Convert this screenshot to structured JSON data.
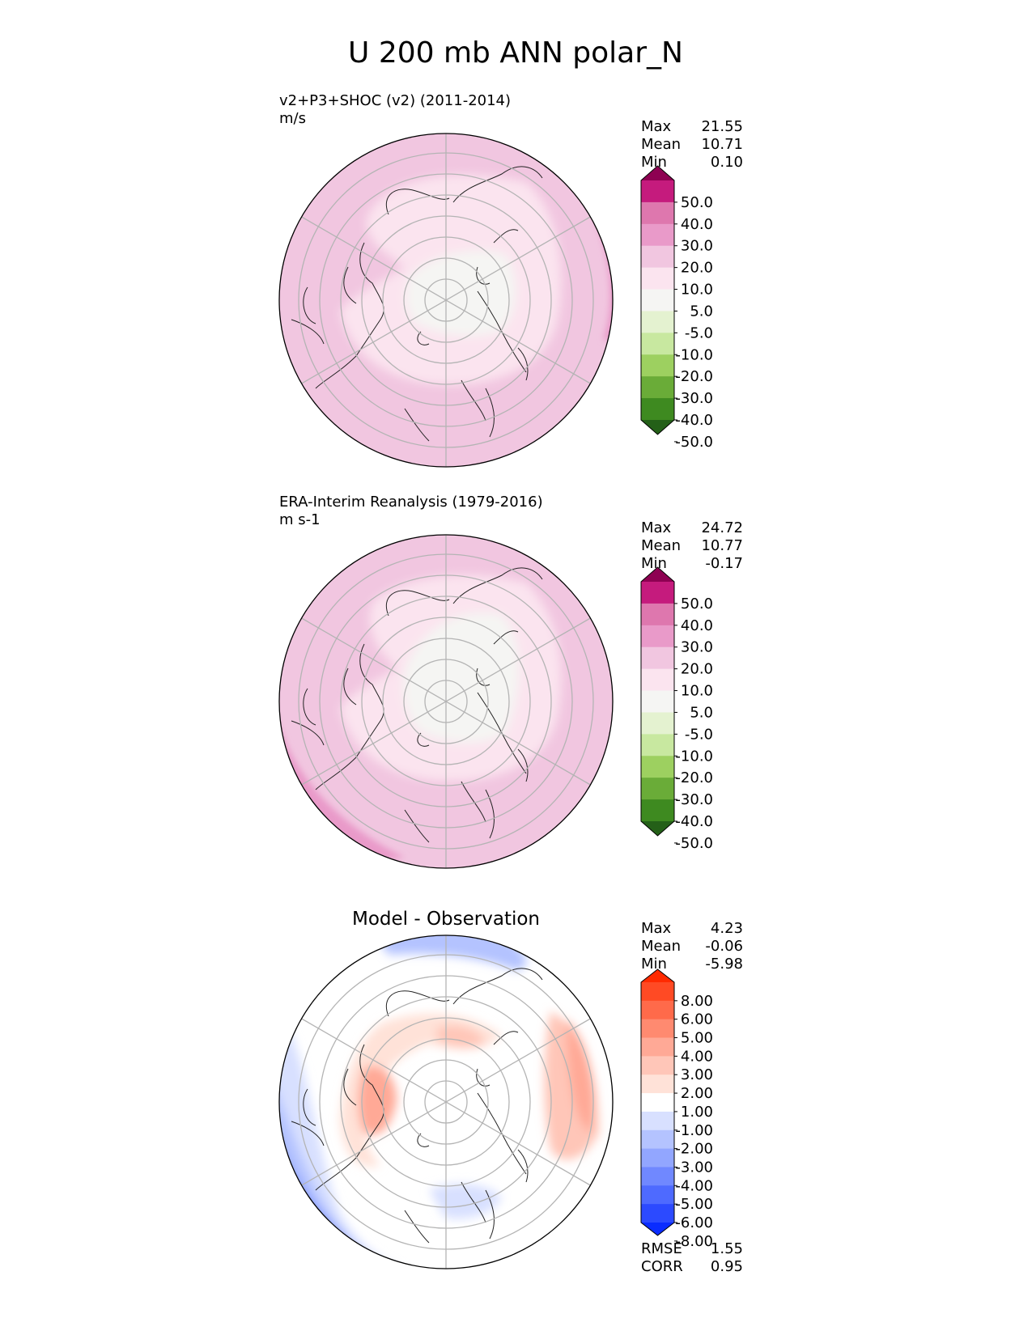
{
  "title": "U 200 mb ANN polar_N",
  "stat_labels": {
    "max": "Max",
    "mean": "Mean",
    "min": "Min",
    "rmse": "RMSE",
    "corr": "CORR"
  },
  "panels": [
    {
      "id": "test",
      "name": "v2+P3+SHOC (v2) (2011-2014)",
      "units": "m/s",
      "stats": {
        "max": "21.55",
        "mean": "10.71",
        "min": "0.10"
      }
    },
    {
      "id": "reference",
      "name": "ERA-Interim Reanalysis (1979-2016)",
      "units": "m s-1",
      "stats": {
        "max": "24.72",
        "mean": "10.77",
        "min": "-0.17"
      }
    },
    {
      "id": "difference",
      "title": "Model - Observation",
      "stats": {
        "max": "4.23",
        "mean": "-0.06",
        "min": "-5.98"
      },
      "metrics": {
        "rmse": "1.55",
        "corr": "0.95"
      }
    }
  ],
  "colorbars": {
    "field": {
      "labels": [
        "50.0",
        "40.0",
        "30.0",
        "20.0",
        "10.0",
        "5.0",
        "-5.0",
        "-10.0",
        "-20.0",
        "-30.0",
        "-40.0",
        "-50.0"
      ],
      "colors": [
        "#8e0152",
        "#c51b7d",
        "#de77ae",
        "#e99ac9",
        "#f1c6e0",
        "#fbe4ef",
        "#f5f5f3",
        "#e4f2d0",
        "#c8e8a0",
        "#9dd060",
        "#6aac38",
        "#3e8a20",
        "#246018"
      ]
    },
    "diff": {
      "labels": [
        "8.00",
        "6.00",
        "5.00",
        "4.00",
        "3.00",
        "2.00",
        "1.00",
        "-1.00",
        "-2.00",
        "-3.00",
        "-4.00",
        "-5.00",
        "-6.00",
        "-8.00"
      ],
      "colors": [
        "#ff2a00",
        "#ff4a24",
        "#ff6a4a",
        "#ff8a70",
        "#ffa996",
        "#ffc6b8",
        "#ffe2d8",
        "#ffffff",
        "#d8e0ff",
        "#b4c3ff",
        "#92a6ff",
        "#7088ff",
        "#4e6aff",
        "#2c4aff",
        "#0a2cff"
      ]
    }
  },
  "chart_data": [
    {
      "type": "heatmap",
      "projection": "north polar stereographic",
      "title": "v2+P3+SHOC (v2) (2011-2014)",
      "units": "m/s",
      "variable": "U 200 mb ANN",
      "min": 0.1,
      "mean": 10.71,
      "max": 21.55,
      "levels": [
        -50,
        -40,
        -30,
        -20,
        -10,
        -5,
        5,
        10,
        20,
        30,
        40,
        50
      ]
    },
    {
      "type": "heatmap",
      "projection": "north polar stereographic",
      "title": "ERA-Interim Reanalysis (1979-2016)",
      "units": "m s-1",
      "variable": "U 200 mb ANN",
      "min": -0.17,
      "mean": 10.77,
      "max": 24.72,
      "levels": [
        -50,
        -40,
        -30,
        -20,
        -10,
        -5,
        5,
        10,
        20,
        30,
        40,
        50
      ]
    },
    {
      "type": "heatmap",
      "projection": "north polar stereographic",
      "title": "Model - Observation",
      "min": -5.98,
      "mean": -0.06,
      "max": 4.23,
      "rmse": 1.55,
      "corr": 0.95,
      "levels": [
        -8,
        -6,
        -5,
        -4,
        -3,
        -2,
        -1,
        1,
        2,
        3,
        4,
        5,
        6,
        8
      ]
    }
  ]
}
